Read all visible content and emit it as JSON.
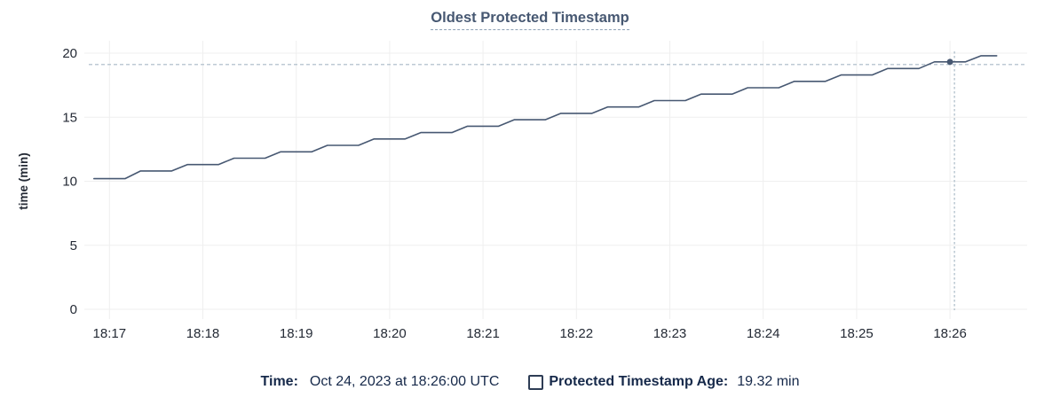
{
  "title": {
    "text": "Oldest Protected Timestamp"
  },
  "chart_data": {
    "type": "line",
    "title": "Oldest Protected Timestamp",
    "xlabel": "",
    "ylabel": "time (min)",
    "ylim": [
      0,
      20
    ],
    "y_ticks": [
      0,
      5,
      10,
      15,
      20
    ],
    "x_ticks": [
      "18:17",
      "18:18",
      "18:19",
      "18:20",
      "18:21",
      "18:22",
      "18:23",
      "18:24",
      "18:25",
      "18:26"
    ],
    "grid": true,
    "legend_position": "bottom",
    "series": [
      {
        "name": "Protected Timestamp Age",
        "unit": "min",
        "points": [
          [
            "18:16:50",
            10.2
          ],
          [
            "18:17:00",
            10.2
          ],
          [
            "18:17:10",
            10.2
          ],
          [
            "18:17:20",
            10.8
          ],
          [
            "18:17:30",
            10.8
          ],
          [
            "18:17:40",
            10.8
          ],
          [
            "18:17:50",
            11.3
          ],
          [
            "18:18:00",
            11.3
          ],
          [
            "18:18:10",
            11.3
          ],
          [
            "18:18:20",
            11.8
          ],
          [
            "18:18:30",
            11.8
          ],
          [
            "18:18:40",
            11.8
          ],
          [
            "18:18:50",
            12.3
          ],
          [
            "18:19:00",
            12.3
          ],
          [
            "18:19:10",
            12.3
          ],
          [
            "18:19:20",
            12.8
          ],
          [
            "18:19:30",
            12.8
          ],
          [
            "18:19:40",
            12.8
          ],
          [
            "18:19:50",
            13.3
          ],
          [
            "18:20:00",
            13.3
          ],
          [
            "18:20:10",
            13.3
          ],
          [
            "18:20:20",
            13.8
          ],
          [
            "18:20:30",
            13.8
          ],
          [
            "18:20:40",
            13.8
          ],
          [
            "18:20:50",
            14.3
          ],
          [
            "18:21:00",
            14.3
          ],
          [
            "18:21:10",
            14.3
          ],
          [
            "18:21:20",
            14.8
          ],
          [
            "18:21:30",
            14.8
          ],
          [
            "18:21:40",
            14.8
          ],
          [
            "18:21:50",
            15.3
          ],
          [
            "18:22:00",
            15.3
          ],
          [
            "18:22:10",
            15.3
          ],
          [
            "18:22:20",
            15.8
          ],
          [
            "18:22:30",
            15.8
          ],
          [
            "18:22:40",
            15.8
          ],
          [
            "18:22:50",
            16.3
          ],
          [
            "18:23:00",
            16.3
          ],
          [
            "18:23:10",
            16.3
          ],
          [
            "18:23:20",
            16.8
          ],
          [
            "18:23:30",
            16.8
          ],
          [
            "18:23:40",
            16.8
          ],
          [
            "18:23:50",
            17.3
          ],
          [
            "18:24:00",
            17.3
          ],
          [
            "18:24:10",
            17.3
          ],
          [
            "18:24:20",
            17.8
          ],
          [
            "18:24:30",
            17.8
          ],
          [
            "18:24:40",
            17.8
          ],
          [
            "18:24:50",
            18.3
          ],
          [
            "18:25:00",
            18.3
          ],
          [
            "18:25:10",
            18.3
          ],
          [
            "18:25:20",
            18.8
          ],
          [
            "18:25:30",
            18.8
          ],
          [
            "18:25:40",
            18.8
          ],
          [
            "18:25:50",
            19.32
          ],
          [
            "18:26:00",
            19.32
          ],
          [
            "18:26:10",
            19.32
          ],
          [
            "18:26:20",
            19.8
          ],
          [
            "18:26:30",
            19.8
          ]
        ]
      }
    ],
    "hover_point": {
      "time": "18:26:00",
      "value": 19.32
    }
  },
  "legend": {
    "time_label": "Time:",
    "time_value": "Oct 24, 2023 at 18:26:00 UTC",
    "series_label": "Protected Timestamp Age:",
    "series_value": "19.32 min",
    "checkbox_state": "unchecked"
  },
  "colors": {
    "line": "#475872",
    "title": "#475872",
    "axis_text": "#242a35",
    "legend_text": "#16294a",
    "grid": "#efefef",
    "crosshair": "#a8b9c6",
    "background": "#ffffff"
  }
}
